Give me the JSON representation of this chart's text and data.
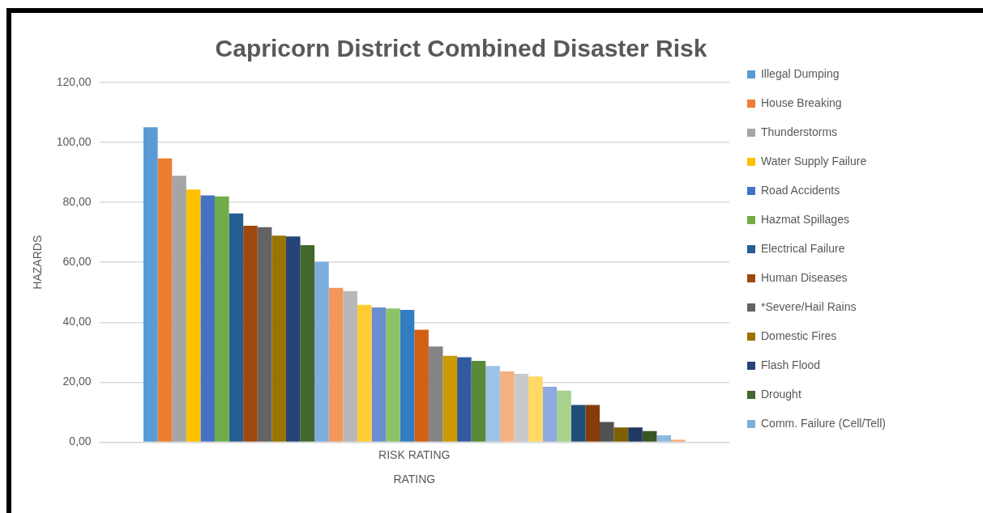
{
  "chart_data": {
    "type": "bar",
    "title": "Capricorn District Combined Disaster Risk",
    "xlabel": "RATING",
    "ylabel": "HAZARDS",
    "categories": [
      "RISK RATING"
    ],
    "ylim": [
      0,
      120
    ],
    "yticks": [
      {
        "value": 0,
        "label": "0,00"
      },
      {
        "value": 20,
        "label": "20,00"
      },
      {
        "value": 40,
        "label": "40,00"
      },
      {
        "value": 60,
        "label": "60,00"
      },
      {
        "value": 80,
        "label": "80,00"
      },
      {
        "value": 100,
        "label": "100,00"
      },
      {
        "value": 120,
        "label": "120,00"
      }
    ],
    "grid": "y",
    "legend": "right",
    "series": [
      {
        "name": "Illegal Dumping",
        "color": "#5b9bd5",
        "values": [
          105.1
        ]
      },
      {
        "name": "House Breaking",
        "color": "#ed7d31",
        "values": [
          94.7
        ]
      },
      {
        "name": "Thunderstorms",
        "color": "#a5a5a5",
        "values": [
          88.9
        ]
      },
      {
        "name": "Water Supply Failure",
        "color": "#ffc000",
        "values": [
          84.3
        ]
      },
      {
        "name": "Road Accidents",
        "color": "#4472c4",
        "values": [
          82.3
        ]
      },
      {
        "name": "Hazmat Spillages",
        "color": "#70ad47",
        "values": [
          82.0
        ]
      },
      {
        "name": "Electrical Failure",
        "color": "#255e91",
        "values": [
          76.3
        ]
      },
      {
        "name": "Human Diseases",
        "color": "#9e480e",
        "values": [
          72.2
        ]
      },
      {
        "name": "*Severe/Hail Rains",
        "color": "#636363",
        "values": [
          71.7
        ]
      },
      {
        "name": "Domestic Fires",
        "color": "#997300",
        "values": [
          68.9
        ]
      },
      {
        "name": "Flash Flood",
        "color": "#264478",
        "values": [
          68.6
        ]
      },
      {
        "name": "Drought",
        "color": "#43682b",
        "values": [
          65.7
        ]
      },
      {
        "name": "Comm. Failure (Cell/Tell)",
        "color": "#7cafdd",
        "values": [
          60.2
        ]
      },
      {
        "color": "#f1975a",
        "values": [
          51.5
        ]
      },
      {
        "color": "#b7b7b7",
        "values": [
          50.4
        ]
      },
      {
        "color": "#ffcd33",
        "values": [
          45.8
        ]
      },
      {
        "color": "#698ed0",
        "values": [
          44.9
        ]
      },
      {
        "color": "#8cc168",
        "values": [
          44.6
        ]
      },
      {
        "color": "#327dc2",
        "values": [
          44.1
        ]
      },
      {
        "color": "#d26012",
        "values": [
          37.5
        ]
      },
      {
        "color": "#848484",
        "values": [
          31.9
        ]
      },
      {
        "color": "#cc9a00",
        "values": [
          28.8
        ]
      },
      {
        "color": "#335aa1",
        "values": [
          28.3
        ]
      },
      {
        "color": "#5a8a39",
        "values": [
          27.1
        ]
      },
      {
        "color": "#9dc3e6",
        "values": [
          25.4
        ]
      },
      {
        "color": "#f4b183",
        "values": [
          23.6
        ]
      },
      {
        "color": "#c9c9c9",
        "values": [
          22.8
        ]
      },
      {
        "color": "#ffd966",
        "values": [
          21.9
        ]
      },
      {
        "color": "#8faadc",
        "values": [
          18.5
        ]
      },
      {
        "color": "#a9d18e",
        "values": [
          17.2
        ]
      },
      {
        "color": "#1f4e79",
        "values": [
          12.4
        ]
      },
      {
        "color": "#843c0c",
        "values": [
          12.4
        ]
      },
      {
        "color": "#525252",
        "values": [
          6.7
        ]
      },
      {
        "color": "#7f6000",
        "values": [
          4.9
        ]
      },
      {
        "color": "#203864",
        "values": [
          4.9
        ]
      },
      {
        "color": "#375623",
        "values": [
          3.7
        ]
      },
      {
        "color": "#8db8e2",
        "values": [
          2.3
        ]
      },
      {
        "color": "#f4a877",
        "values": [
          0.8
        ]
      }
    ]
  }
}
